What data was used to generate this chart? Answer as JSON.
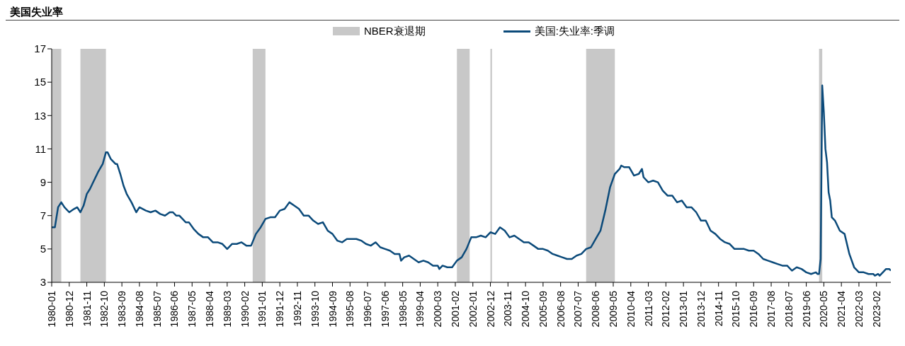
{
  "chart_data": {
    "type": "line",
    "title": "美国失业率",
    "legend": "top",
    "xlim": [
      "1980-01",
      "2023-11"
    ],
    "xticks": [
      "1980-01",
      "1980-12",
      "1981-11",
      "1982-10",
      "1983-09",
      "1984-08",
      "1985-07",
      "1986-06",
      "1987-05",
      "1988-04",
      "1989-03",
      "1990-02",
      "1991-01",
      "1991-12",
      "1992-11",
      "1993-10",
      "1994-09",
      "1995-08",
      "1996-07",
      "1997-06",
      "1998-05",
      "1999-04",
      "2000-03",
      "2001-02",
      "2002-01",
      "2002-12",
      "2003-11",
      "2004-10",
      "2005-09",
      "2006-08",
      "2007-07",
      "2008-06",
      "2009-05",
      "2010-04",
      "2011-03",
      "2012-02",
      "2013-01",
      "2013-12",
      "2014-11",
      "2015-10",
      "2016-09",
      "2017-08",
      "2018-07",
      "2019-06",
      "2020-05",
      "2021-04",
      "2022-03",
      "2023-02"
    ],
    "ylim": [
      3,
      17
    ],
    "yticks": [
      3,
      5,
      7,
      9,
      11,
      13,
      15,
      17
    ],
    "bands": [
      {
        "axis": "x",
        "from": "1980-01",
        "to": "1980-07",
        "label": "NBER衰退期",
        "color": "#c8c8c8"
      },
      {
        "axis": "x",
        "from": "1981-07",
        "to": "1982-11",
        "color": "#c8c8c8"
      },
      {
        "axis": "x",
        "from": "1990-07",
        "to": "1991-03",
        "color": "#c8c8c8"
      },
      {
        "axis": "x",
        "from": "2001-03",
        "to": "2001-11",
        "color": "#c8c8c8"
      },
      {
        "axis": "x",
        "from": "2002-12",
        "to": "2003-01",
        "color": "#c8c8c8"
      },
      {
        "axis": "x",
        "from": "2007-12",
        "to": "2009-06",
        "color": "#c8c8c8"
      },
      {
        "axis": "x",
        "from": "2020-02",
        "to": "2020-04",
        "color": "#c8c8c8"
      }
    ],
    "series": [
      {
        "name": "美国:失业率:季调",
        "color": "#0b4a7a",
        "x": [
          "1980-01",
          "1980-03",
          "1980-05",
          "1980-07",
          "1980-09",
          "1980-12",
          "1981-03",
          "1981-05",
          "1981-07",
          "1981-09",
          "1981-11",
          "1982-01",
          "1982-03",
          "1982-06",
          "1982-09",
          "1982-11",
          "1982-12",
          "1983-02",
          "1983-05",
          "1983-06",
          "1983-08",
          "1983-10",
          "1983-12",
          "1984-03",
          "1984-06",
          "1984-08",
          "1984-12",
          "1985-03",
          "1985-06",
          "1985-09",
          "1985-12",
          "1986-03",
          "1986-05",
          "1986-07",
          "1986-09",
          "1987-01",
          "1987-03",
          "1987-06",
          "1987-09",
          "1987-12",
          "1988-03",
          "1988-06",
          "1988-09",
          "1988-12",
          "1989-03",
          "1989-06",
          "1989-09",
          "1989-12",
          "1990-03",
          "1990-06",
          "1990-09",
          "1990-12",
          "1991-03",
          "1991-06",
          "1991-09",
          "1991-12",
          "1992-03",
          "1992-06",
          "1992-09",
          "1992-12",
          "1993-03",
          "1993-06",
          "1993-09",
          "1993-12",
          "1994-03",
          "1994-06",
          "1994-09",
          "1994-12",
          "1995-03",
          "1995-06",
          "1995-09",
          "1995-12",
          "1996-03",
          "1996-06",
          "1996-09",
          "1996-12",
          "1997-03",
          "1997-06",
          "1997-09",
          "1997-12",
          "1998-03",
          "1998-04",
          "1998-06",
          "1998-09",
          "1998-12",
          "1999-03",
          "1999-06",
          "1999-09",
          "1999-12",
          "2000-03",
          "2000-04",
          "2000-06",
          "2000-09",
          "2000-12",
          "2001-03",
          "2001-06",
          "2001-09",
          "2001-12",
          "2002-03",
          "2002-06",
          "2002-09",
          "2002-12",
          "2003-03",
          "2003-06",
          "2003-09",
          "2003-12",
          "2004-03",
          "2004-06",
          "2004-09",
          "2004-12",
          "2005-03",
          "2005-06",
          "2005-09",
          "2005-12",
          "2006-03",
          "2006-06",
          "2006-09",
          "2006-12",
          "2007-03",
          "2007-06",
          "2007-09",
          "2007-12",
          "2008-03",
          "2008-06",
          "2008-09",
          "2008-12",
          "2009-03",
          "2009-06",
          "2009-09",
          "2009-10",
          "2009-12",
          "2010-03",
          "2010-06",
          "2010-09",
          "2010-11",
          "2010-12",
          "2011-03",
          "2011-06",
          "2011-09",
          "2011-12",
          "2012-03",
          "2012-06",
          "2012-09",
          "2012-12",
          "2013-03",
          "2013-06",
          "2013-09",
          "2013-12",
          "2014-03",
          "2014-06",
          "2014-09",
          "2014-12",
          "2015-03",
          "2015-06",
          "2015-09",
          "2015-12",
          "2016-03",
          "2016-06",
          "2016-09",
          "2016-12",
          "2017-03",
          "2017-06",
          "2017-09",
          "2017-12",
          "2018-03",
          "2018-06",
          "2018-09",
          "2018-12",
          "2019-03",
          "2019-06",
          "2019-09",
          "2019-12",
          "2020-01",
          "2020-02",
          "2020-03",
          "2020-04",
          "2020-05",
          "2020-06",
          "2020-07",
          "2020-08",
          "2020-09",
          "2020-10",
          "2020-12",
          "2021-03",
          "2021-06",
          "2021-09",
          "2021-12",
          "2022-03",
          "2022-06",
          "2022-09",
          "2022-12",
          "2023-01",
          "2023-03",
          "2023-04",
          "2023-06",
          "2023-08",
          "2023-10",
          "2023-11"
        ],
        "values": [
          6.3,
          6.3,
          7.5,
          7.8,
          7.5,
          7.2,
          7.4,
          7.5,
          7.2,
          7.6,
          8.3,
          8.6,
          9.0,
          9.6,
          10.1,
          10.8,
          10.8,
          10.4,
          10.1,
          10.1,
          9.5,
          8.8,
          8.3,
          7.8,
          7.2,
          7.5,
          7.3,
          7.2,
          7.3,
          7.1,
          7.0,
          7.2,
          7.2,
          7.0,
          7.0,
          6.6,
          6.6,
          6.2,
          5.9,
          5.7,
          5.7,
          5.4,
          5.4,
          5.3,
          5.0,
          5.3,
          5.3,
          5.4,
          5.2,
          5.2,
          5.9,
          6.3,
          6.8,
          6.9,
          6.9,
          7.3,
          7.4,
          7.8,
          7.6,
          7.4,
          7.0,
          7.0,
          6.7,
          6.5,
          6.6,
          6.1,
          5.9,
          5.5,
          5.4,
          5.6,
          5.6,
          5.6,
          5.5,
          5.3,
          5.2,
          5.4,
          5.1,
          5.0,
          4.9,
          4.7,
          4.7,
          4.3,
          4.5,
          4.6,
          4.4,
          4.2,
          4.3,
          4.2,
          4.0,
          4.0,
          3.8,
          4.0,
          3.9,
          3.9,
          4.3,
          4.5,
          5.0,
          5.7,
          5.7,
          5.8,
          5.7,
          6.0,
          5.9,
          6.3,
          6.1,
          5.7,
          5.8,
          5.6,
          5.4,
          5.4,
          5.2,
          5.0,
          5.0,
          4.9,
          4.7,
          4.6,
          4.5,
          4.4,
          4.4,
          4.6,
          4.7,
          5.0,
          5.1,
          5.6,
          6.1,
          7.3,
          8.7,
          9.5,
          9.8,
          10.0,
          9.9,
          9.9,
          9.4,
          9.5,
          9.8,
          9.3,
          9.0,
          9.1,
          9.0,
          8.5,
          8.2,
          8.2,
          7.8,
          7.9,
          7.5,
          7.5,
          7.2,
          6.7,
          6.7,
          6.1,
          5.9,
          5.6,
          5.4,
          5.3,
          5.0,
          5.0,
          5.0,
          4.9,
          4.9,
          4.7,
          4.4,
          4.3,
          4.2,
          4.1,
          4.0,
          4.0,
          3.7,
          3.9,
          3.8,
          3.6,
          3.5,
          3.6,
          3.5,
          3.5,
          4.4,
          14.8,
          13.2,
          11.0,
          10.2,
          8.4,
          7.9,
          6.9,
          6.7,
          6.1,
          5.9,
          4.7,
          3.9,
          3.6,
          3.6,
          3.5,
          3.5,
          3.4,
          3.5,
          3.4,
          3.6,
          3.8,
          3.8,
          3.7
        ]
      }
    ]
  }
}
